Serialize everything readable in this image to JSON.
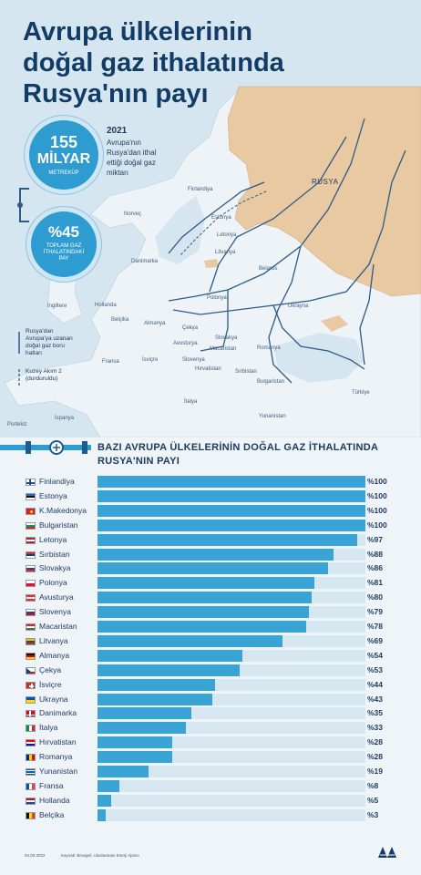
{
  "title": "Avrupa ülkelerinin doğal gaz ithalatında Rusya'nın payı",
  "stat1": {
    "number": "155",
    "unit": "MİLYAR",
    "sub": "METREKÜP"
  },
  "stat2": {
    "number": "%45",
    "sub": "TOPLAM GAZ İTHALATINDAKİ PAY"
  },
  "info": {
    "year": "2021",
    "desc": "Avrupa'nın Rusya'dan ithal ettiği doğal gaz miktarı"
  },
  "legend": {
    "pipes": "Rusya'dan Avrupa'ya uzanan doğal gaz boru hatları",
    "nordstream": "Kuzey Akım 2 (durduruldu)"
  },
  "map_labels": {
    "russia": "RUSYA",
    "finland": "Finlandiya",
    "norway": "Norveç",
    "estonia": "Estonya",
    "latvia": "Letonya",
    "lithuania": "Litvanya",
    "denmark": "Danimarka",
    "belarus": "Belarus",
    "uk": "İngiltere",
    "netherlands": "Hollanda",
    "belgium": "Belçika",
    "germany": "Almanya",
    "poland": "Polonya",
    "czechia": "Çekya",
    "ukraine": "Ukrayna",
    "france": "Fransa",
    "switzerland": "İsviçre",
    "austria": "Avusturya",
    "slovakia": "Slovakya",
    "hungary": "Macaristan",
    "romania": "Romanya",
    "slovenia": "Slovenya",
    "croatia": "Hırvatistan",
    "serbia": "Sırbistan",
    "bulgaria": "Bulgaristan",
    "portugal": "Portekiz",
    "spain": "İspanya",
    "italy": "İtalya",
    "greece": "Yunanistan",
    "turkey": "Türkiye"
  },
  "footer": {
    "date": "04.03.2022",
    "source": "Kaynak: Bruegel, Uluslararası Enerji Ajansı"
  },
  "colors": {
    "bar": "#3aa3d6",
    "track": "#d7e7f1",
    "russia": "#e8c9a2",
    "sea": "#d6e6f0",
    "land": "#eef3f7",
    "title": "#123c66"
  },
  "chart_data": {
    "type": "bar",
    "orientation": "horizontal",
    "title": "BAZI AVRUPA ÜLKELERİNİN DOĞAL GAZ İTHALATINDA RUSYA'NIN PAYI",
    "xlim": [
      0,
      100
    ],
    "categories": [
      "Finlandiya",
      "Estonya",
      "K.Makedonya",
      "Bulgaristan",
      "Letonya",
      "Sırbistan",
      "Slovakya",
      "Polonya",
      "Avusturya",
      "Slovenya",
      "Macaristan",
      "Litvanya",
      "Almanya",
      "Çekya",
      "İsviçre",
      "Ukrayna",
      "Danimarka",
      "İtalya",
      "Hırvatistan",
      "Romanya",
      "Yunanistan",
      "Fransa",
      "Hollanda",
      "Belçika"
    ],
    "values": [
      100,
      100,
      100,
      100,
      97,
      88,
      86,
      81,
      80,
      79,
      78,
      69,
      54,
      53,
      44,
      43,
      35,
      33,
      28,
      28,
      19,
      8,
      5,
      3
    ],
    "value_labels": [
      "%100",
      "%100",
      "%100",
      "%100",
      "%97",
      "%88",
      "%86",
      "%81",
      "%80",
      "%79",
      "%78",
      "%69",
      "%54",
      "%53",
      "%44",
      "%43",
      "%35",
      "%33",
      "%28",
      "%28",
      "%19",
      "%8",
      "%5",
      "%3"
    ],
    "flag_icons": [
      "flag-finland-icon",
      "flag-estonia-icon",
      "flag-north-macedonia-icon",
      "flag-bulgaria-icon",
      "flag-latvia-icon",
      "flag-serbia-icon",
      "flag-slovakia-icon",
      "flag-poland-icon",
      "flag-austria-icon",
      "flag-slovenia-icon",
      "flag-hungary-icon",
      "flag-lithuania-icon",
      "flag-germany-icon",
      "flag-czechia-icon",
      "flag-switzerland-icon",
      "flag-ukraine-icon",
      "flag-denmark-icon",
      "flag-italy-icon",
      "flag-croatia-icon",
      "flag-romania-icon",
      "flag-greece-icon",
      "flag-france-icon",
      "flag-netherlands-icon",
      "flag-belgium-icon"
    ]
  }
}
